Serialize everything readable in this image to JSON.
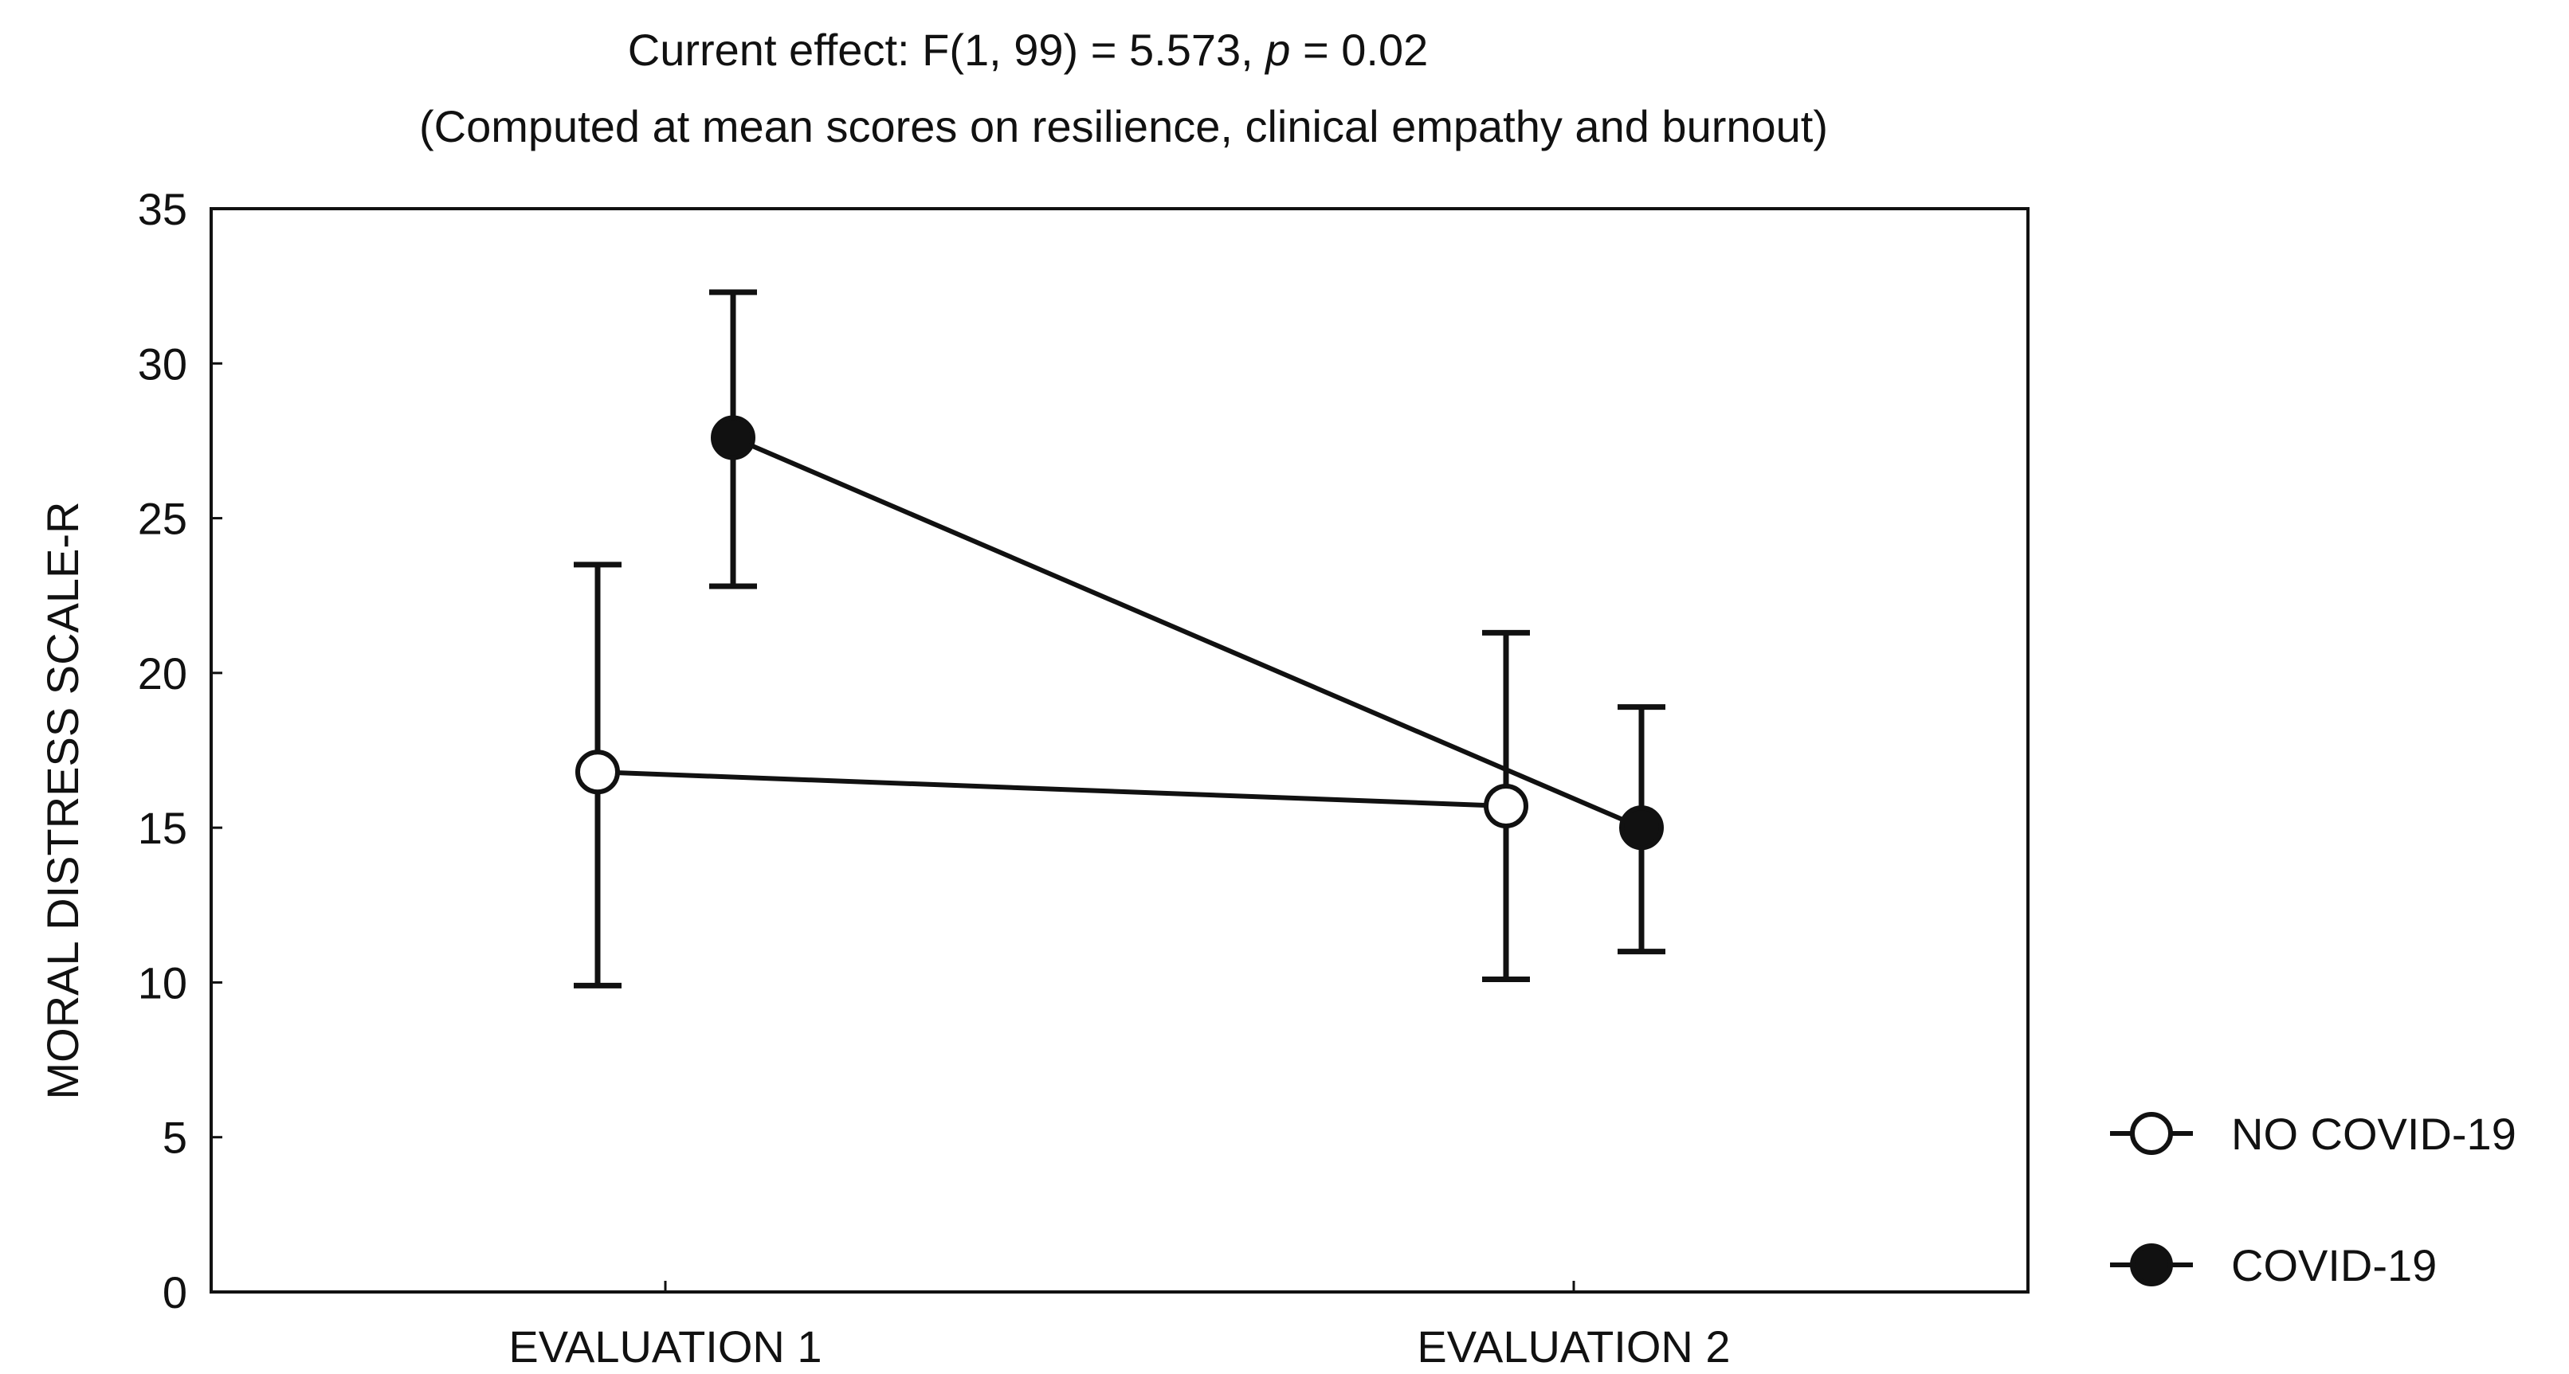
{
  "chart_data": {
    "type": "line",
    "title": {
      "prefix": "Current effect: F(1, 99) = 5.573, ",
      "p_symbol": "p",
      "suffix": " = 0.02"
    },
    "subtitle": "(Computed at mean scores on resilience, clinical empathy and burnout)",
    "xlabel": "",
    "ylabel": "MORAL DISTRESS SCALE-R",
    "categories": [
      "EVALUATION 1",
      "EVALUATION 2"
    ],
    "ylim": [
      0,
      35
    ],
    "yticks": [
      0,
      5,
      10,
      15,
      20,
      25,
      30,
      35
    ],
    "grid": false,
    "legend_position": "bottom-right",
    "series": [
      {
        "name": "NO COVID-19",
        "marker": "open-circle",
        "values": [
          16.8,
          15.7
        ],
        "error_low": [
          9.9,
          10.1
        ],
        "error_high": [
          23.5,
          21.3
        ]
      },
      {
        "name": "COVID-19",
        "marker": "filled-circle",
        "values": [
          27.6,
          15.0
        ],
        "error_low": [
          22.8,
          11.0
        ],
        "error_high": [
          32.3,
          18.9
        ]
      }
    ]
  }
}
